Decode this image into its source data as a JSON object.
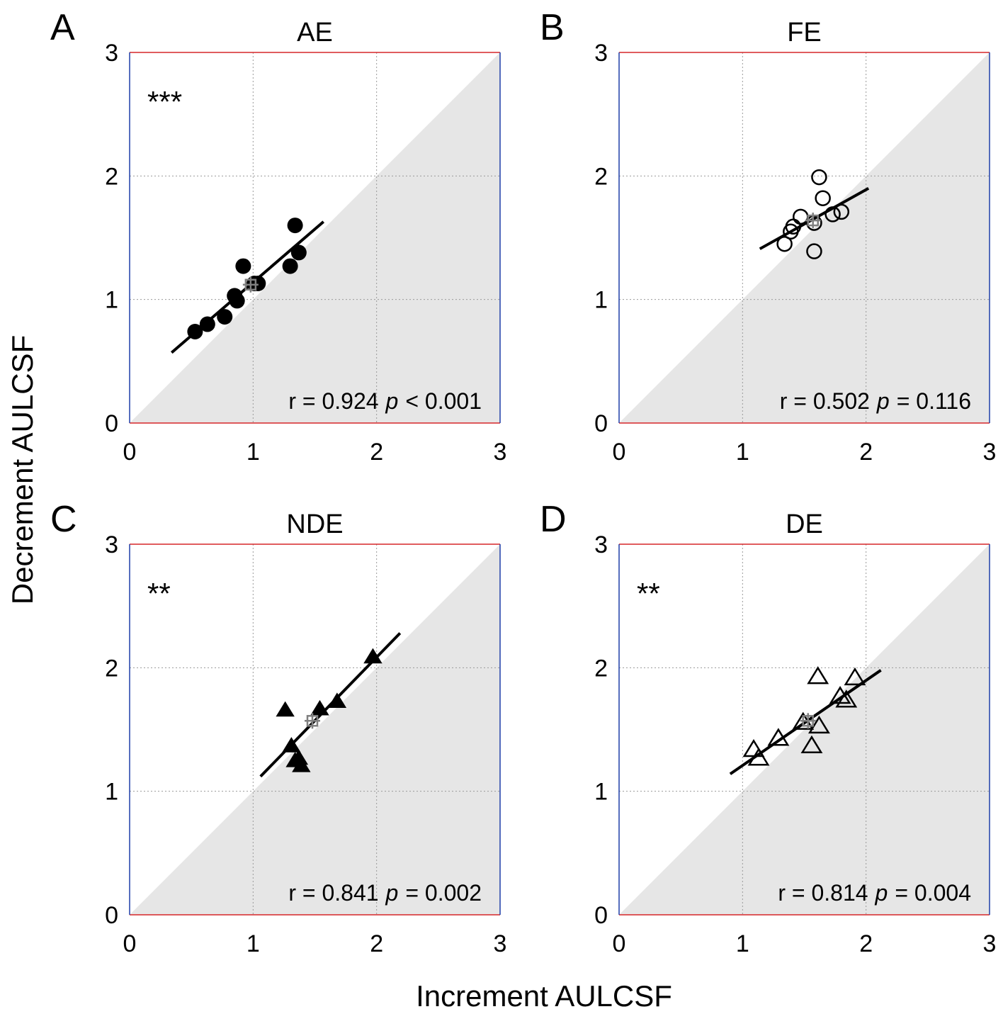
{
  "figure": {
    "xlabel": "Increment AULCSF",
    "ylabel": "Decrement AULCSF"
  },
  "chart_data": [
    {
      "type": "scatter",
      "panel": "A",
      "title": "AE",
      "marker": "filled-circle",
      "xlim": [
        0,
        3
      ],
      "ylim": [
        0,
        3
      ],
      "xticks": [
        0,
        1,
        2,
        3
      ],
      "yticks": [
        0,
        1,
        2,
        3
      ],
      "grid": true,
      "significance": "***",
      "stats": {
        "r_text": "r = 0.924",
        "p_symbol": "p",
        "p_text": "< 0.001"
      },
      "points": [
        [
          0.53,
          0.74
        ],
        [
          0.63,
          0.8
        ],
        [
          0.77,
          0.86
        ],
        [
          0.85,
          1.03
        ],
        [
          0.87,
          0.99
        ],
        [
          0.92,
          1.27
        ],
        [
          1.01,
          1.13
        ],
        [
          1.04,
          1.13
        ],
        [
          1.3,
          1.27
        ],
        [
          1.34,
          1.6
        ],
        [
          1.37,
          1.38
        ]
      ],
      "fit": {
        "x": [
          0.34,
          1.57
        ],
        "y": [
          0.57,
          1.63
        ]
      },
      "mean": {
        "x": 0.98,
        "y": 1.12
      }
    },
    {
      "type": "scatter",
      "panel": "B",
      "title": "FE",
      "marker": "open-circle",
      "xlim": [
        0,
        3
      ],
      "ylim": [
        0,
        3
      ],
      "xticks": [
        0,
        1,
        2,
        3
      ],
      "yticks": [
        0,
        1,
        2,
        3
      ],
      "grid": true,
      "significance": "",
      "stats": {
        "r_text": "r = 0.502",
        "p_symbol": "p",
        "p_text": "= 0.116"
      },
      "points": [
        [
          1.34,
          1.45
        ],
        [
          1.39,
          1.55
        ],
        [
          1.41,
          1.59
        ],
        [
          1.47,
          1.67
        ],
        [
          1.58,
          1.39
        ],
        [
          1.58,
          1.62
        ],
        [
          1.62,
          1.99
        ],
        [
          1.65,
          1.82
        ],
        [
          1.73,
          1.69
        ],
        [
          1.8,
          1.71
        ]
      ],
      "fit": {
        "x": [
          1.14,
          2.02
        ],
        "y": [
          1.41,
          1.9
        ]
      },
      "mean": {
        "x": 1.57,
        "y": 1.64
      }
    },
    {
      "type": "scatter",
      "panel": "C",
      "title": "NDE",
      "marker": "filled-triangle",
      "xlim": [
        0,
        3
      ],
      "ylim": [
        0,
        3
      ],
      "xticks": [
        0,
        1,
        2,
        3
      ],
      "yticks": [
        0,
        1,
        2,
        3
      ],
      "grid": true,
      "significance": "**",
      "stats": {
        "r_text": "r = 0.841",
        "p_symbol": "p",
        "p_text": "= 0.002"
      },
      "points": [
        [
          1.26,
          1.66
        ],
        [
          1.31,
          1.37
        ],
        [
          1.34,
          1.25
        ],
        [
          1.37,
          1.27
        ],
        [
          1.39,
          1.21
        ],
        [
          1.54,
          1.67
        ],
        [
          1.68,
          1.73
        ],
        [
          1.97,
          2.09
        ]
      ],
      "fit": {
        "x": [
          1.06,
          2.19
        ],
        "y": [
          1.12,
          2.28
        ]
      },
      "mean": {
        "x": 1.48,
        "y": 1.57
      }
    },
    {
      "type": "scatter",
      "panel": "D",
      "title": "DE",
      "marker": "open-triangle",
      "xlim": [
        0,
        3
      ],
      "ylim": [
        0,
        3
      ],
      "xticks": [
        0,
        1,
        2,
        3
      ],
      "yticks": [
        0,
        1,
        2,
        3
      ],
      "grid": true,
      "significance": "**",
      "stats": {
        "r_text": "r = 0.814",
        "p_symbol": "p",
        "p_text": "= 0.004"
      },
      "points": [
        [
          1.09,
          1.34
        ],
        [
          1.13,
          1.27
        ],
        [
          1.29,
          1.43
        ],
        [
          1.49,
          1.56
        ],
        [
          1.56,
          1.37
        ],
        [
          1.61,
          1.93
        ],
        [
          1.62,
          1.53
        ],
        [
          1.79,
          1.77
        ],
        [
          1.84,
          1.74
        ],
        [
          1.91,
          1.92
        ]
      ],
      "fit": {
        "x": [
          0.9,
          2.12
        ],
        "y": [
          1.14,
          1.98
        ]
      },
      "mean": {
        "x": 1.53,
        "y": 1.57
      }
    }
  ]
}
